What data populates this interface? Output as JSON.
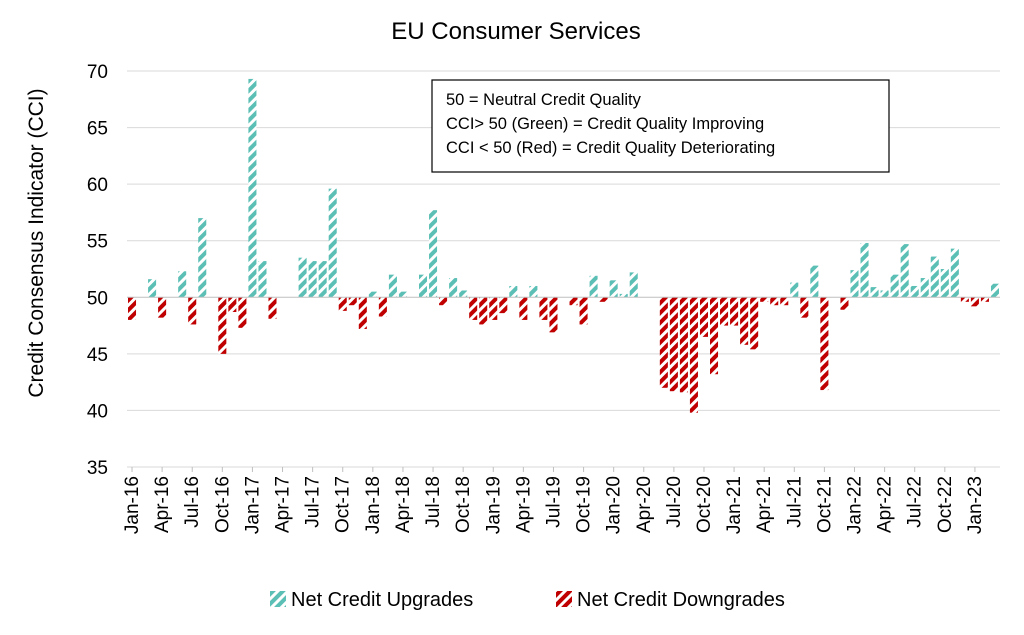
{
  "chart_data": {
    "type": "bar",
    "title": "EU Consumer Services",
    "ylabel": "Credit Consensus Indicator (CCI)",
    "xlabel": "",
    "ylim": [
      35,
      70
    ],
    "yticks": [
      35,
      40,
      45,
      50,
      55,
      60,
      65,
      70
    ],
    "baseline": 50,
    "grid": true,
    "start_month": "2016-01",
    "xtick_labels": [
      "Jan-16",
      "Apr-16",
      "Jul-16",
      "Oct-16",
      "Jan-17",
      "Apr-17",
      "Jul-17",
      "Oct-17",
      "Jan-18",
      "Apr-18",
      "Jul-18",
      "Oct-18",
      "Jan-19",
      "Apr-19",
      "Jul-19",
      "Oct-19",
      "Jan-20",
      "Apr-20",
      "Jul-20",
      "Oct-20",
      "Jan-21",
      "Apr-21",
      "Jul-21",
      "Oct-21",
      "Jan-22",
      "Apr-22",
      "Jul-22",
      "Oct-22",
      "Jan-23"
    ],
    "values": [
      48,
      50,
      51.6,
      48.2,
      50,
      52.3,
      47.6,
      57,
      50,
      45,
      48.7,
      47.3,
      69.3,
      53.2,
      48.1,
      50,
      50,
      53.5,
      53.2,
      53.2,
      59.6,
      48.8,
      49.3,
      47.2,
      50.5,
      48.3,
      52,
      50.5,
      50,
      52,
      57.7,
      49.3,
      51.7,
      50.6,
      48,
      47.6,
      48,
      48.6,
      51,
      48,
      51,
      48,
      46.9,
      50,
      49.3,
      47.6,
      51.9,
      49.6,
      51.5,
      50.3,
      52.2,
      50,
      50,
      42,
      41.7,
      41.6,
      39.8,
      46.5,
      43.2,
      47.5,
      47.5,
      45.8,
      45.4,
      49.6,
      49.3,
      49.3,
      51.3,
      48.2,
      52.8,
      41.8,
      50,
      48.9,
      52.4,
      54.8,
      50.9,
      50.6,
      52,
      54.7,
      51,
      51.7,
      53.6,
      52.5,
      54.3,
      49.6,
      49.2,
      49.6,
      51.2
    ],
    "series": [
      {
        "name": "Net Credit Upgrades",
        "color": "#5BBFB5",
        "rule": "value > 50"
      },
      {
        "name": "Net Credit Downgrades",
        "color": "#C00000",
        "rule": "value < 50"
      }
    ],
    "annotation": [
      "50 = Neutral Credit Quality",
      "CCI> 50 (Green) = Credit Quality Improving",
      "CCI < 50 (Red) = Credit Quality Deteriorating"
    ],
    "legend_position": "bottom"
  }
}
